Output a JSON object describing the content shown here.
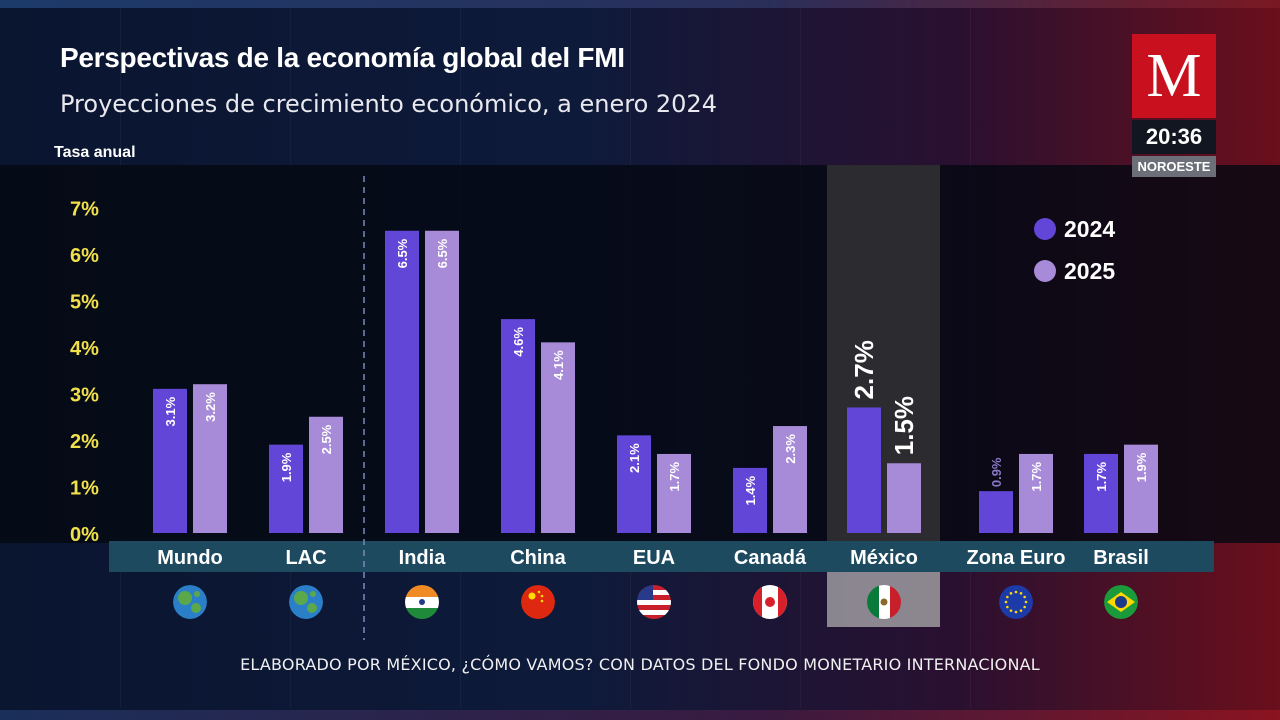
{
  "header": {
    "title": "Perspectivas de la economía global del FMI",
    "subtitle": "Proyecciones de crecimiento económico, a enero 2024"
  },
  "branding": {
    "logo_letter": "M",
    "clock": "20:36",
    "station": "NOROESTE"
  },
  "footer": {
    "source": "ELABORADO POR MÉXICO, ¿CÓMO VAMOS? CON DATOS DEL FONDO MONETARIO INTERNACIONAL"
  },
  "colors": {
    "series_2024": "#6246d8",
    "series_2025": "#a78ad8",
    "ytick": "#f2e04a",
    "axis_band": "#1e4a60",
    "highlight": "#3a3a3e",
    "brand_red": "#c8101e"
  },
  "chart_data": {
    "type": "bar",
    "ylabel": "Tasa anual",
    "yticks": [
      "0%",
      "1%",
      "2%",
      "3%",
      "4%",
      "5%",
      "6%",
      "7%"
    ],
    "ylim": [
      0,
      7
    ],
    "categories": [
      "Mundo",
      "LAC",
      "India",
      "China",
      "EUA",
      "Canadá",
      "México",
      "Zona Euro",
      "Brasil"
    ],
    "series": [
      {
        "name": "2024",
        "values": [
          3.1,
          1.9,
          6.5,
          4.6,
          2.1,
          1.4,
          2.7,
          0.9,
          1.7
        ],
        "labels": [
          "3.1%",
          "1.9%",
          "6.5%",
          "4.6%",
          "2.1%",
          "1.4%",
          "2.7%",
          "0.9%",
          "1.7%"
        ]
      },
      {
        "name": "2025",
        "values": [
          3.2,
          2.5,
          6.5,
          4.1,
          1.7,
          2.3,
          1.5,
          1.7,
          1.9
        ],
        "labels": [
          "3.2%",
          "2.5%",
          "6.5%",
          "4.1%",
          "1.7%",
          "2.3%",
          "1.5%",
          "1.7%",
          "1.9%"
        ]
      }
    ],
    "highlighted_category": "México",
    "flag_icons": [
      "globe-icon",
      "globe-americas-icon",
      "india-flag-icon",
      "china-flag-icon",
      "usa-flag-icon",
      "canada-flag-icon",
      "mexico-flag-icon",
      "eu-flag-icon",
      "brazil-flag-icon"
    ],
    "legend_position": "top-right",
    "grid": false
  }
}
